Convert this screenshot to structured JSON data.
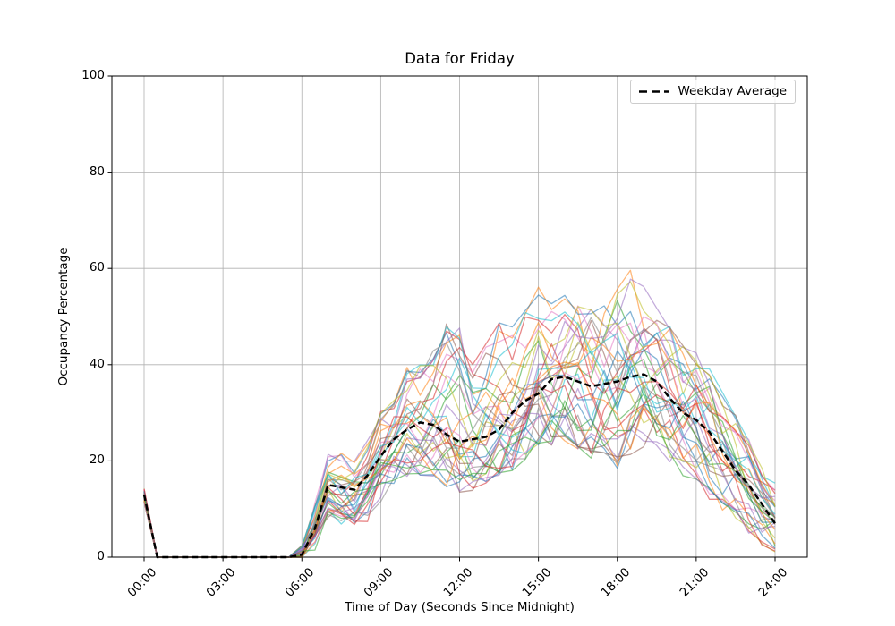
{
  "chart_data": {
    "type": "line",
    "title": "Data for Friday",
    "xlabel": "Time of Day (Seconds Since Midnight)",
    "ylabel": "Occupancy Percentage",
    "ylim": [
      0,
      100
    ],
    "y_ticks": [
      0,
      20,
      40,
      60,
      80,
      100
    ],
    "x_ticks_hours": [
      0,
      3,
      6,
      9,
      12,
      15,
      18,
      21,
      24
    ],
    "x_tick_labels": [
      "00:00",
      "03:00",
      "06:00",
      "09:00",
      "12:00",
      "15:00",
      "18:00",
      "21:00",
      "24:00"
    ],
    "grid": true,
    "grid_color": "#b0b0b0",
    "spine_color": "#000000",
    "legend": {
      "label": "Weekday Average",
      "position": "upper right"
    },
    "time_hours": [
      0,
      0.5,
      1,
      1.5,
      2,
      2.5,
      3,
      3.5,
      4,
      4.5,
      5,
      5.5,
      6,
      6.5,
      7,
      7.5,
      8,
      8.5,
      9,
      9.5,
      10,
      10.5,
      11,
      11.5,
      12,
      12.5,
      13,
      13.5,
      14,
      14.5,
      15,
      15.5,
      16,
      16.5,
      17,
      17.5,
      18,
      18.5,
      19,
      19.5,
      20,
      20.5,
      21,
      21.5,
      22,
      22.5,
      23,
      23.5,
      24
    ],
    "average": [
      13,
      0,
      0,
      0,
      0,
      0,
      0,
      0,
      0,
      0,
      0,
      0,
      0.5,
      6,
      15,
      14.5,
      14,
      17,
      21,
      24.5,
      26.5,
      28,
      27.5,
      25.5,
      24,
      24.5,
      25,
      26.5,
      30,
      32.5,
      34,
      37,
      37.5,
      36.5,
      35.5,
      36,
      36.5,
      37.5,
      38,
      36.5,
      33,
      30,
      28.5,
      26,
      22,
      18,
      15,
      11,
      7
    ],
    "average_style": {
      "color": "#000000",
      "width": 2.5,
      "dash": [
        7,
        4
      ]
    },
    "individual_lines": {
      "count": 35,
      "alpha": 0.55,
      "width": 1.3,
      "seed": 11,
      "colors": [
        "#1f77b4",
        "#ff7f0e",
        "#2ca02c",
        "#d62728",
        "#9467bd",
        "#8c564b",
        "#e377c2",
        "#7f7f7f",
        "#bcbd22",
        "#17becf"
      ],
      "envelope_lower": [
        11,
        0,
        0,
        0,
        0,
        0,
        0,
        0,
        0,
        0,
        0,
        0,
        0,
        1,
        8,
        7,
        6,
        8,
        12,
        15,
        16,
        17,
        16,
        14,
        13,
        14,
        15,
        16,
        18,
        20,
        22,
        22,
        24,
        22,
        20,
        20,
        18,
        20,
        22,
        22,
        18,
        16,
        14,
        12,
        10,
        8,
        5,
        3,
        1
      ],
      "envelope_upper": [
        14.5,
        0,
        0,
        0,
        0,
        0,
        0,
        0,
        0,
        0,
        0,
        0,
        2,
        12,
        21,
        21,
        20,
        24,
        30,
        33,
        40,
        40,
        43,
        49,
        48,
        40,
        45,
        51,
        48,
        52,
        57,
        54,
        55,
        58,
        55,
        57,
        58,
        60,
        58,
        52,
        48,
        45,
        44,
        40,
        35,
        30,
        25,
        18,
        15
      ]
    }
  }
}
